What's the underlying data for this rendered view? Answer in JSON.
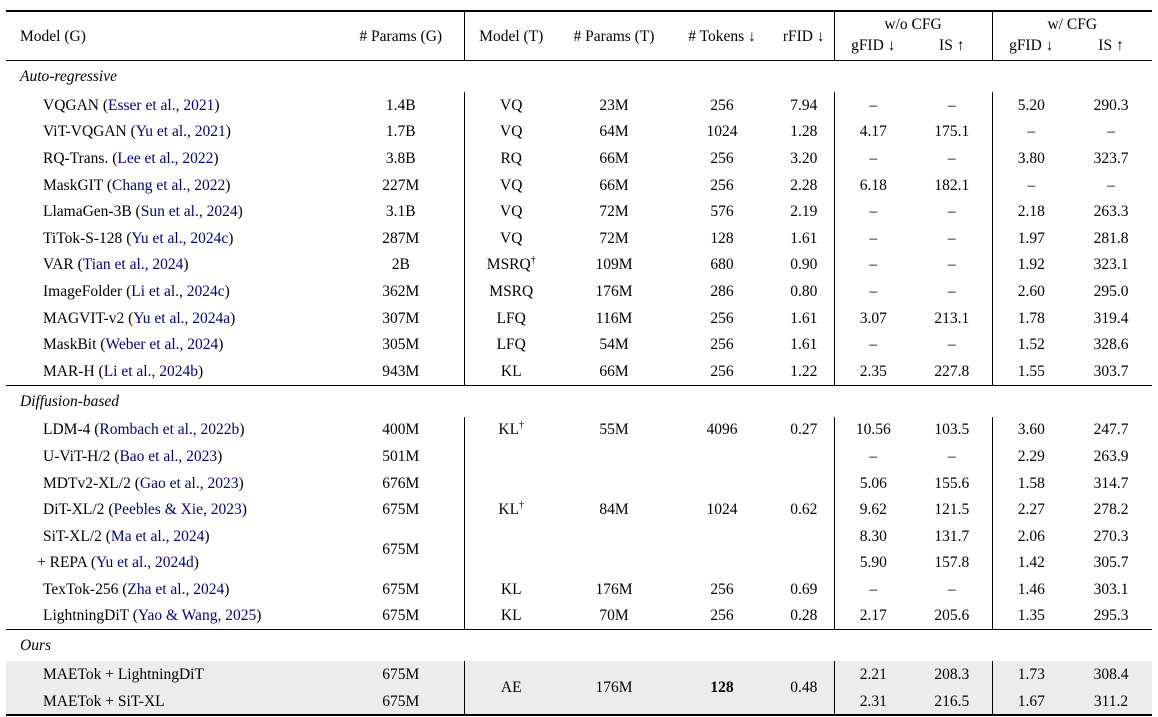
{
  "table": {
    "colors": {
      "cite": "#00008B",
      "highlight": "#ececec"
    },
    "header": {
      "cols": [
        "Model (G)",
        "# Params (G)",
        "Model (T)",
        "# Params (T)",
        "# Tokens ↓",
        "rFID ↓"
      ],
      "groups": [
        {
          "label": "w/o CFG"
        },
        {
          "label": "w/ CFG"
        }
      ],
      "sub": [
        "gFID ↓",
        "IS ↑",
        "gFID ↓",
        "IS ↑"
      ]
    },
    "sections": [
      {
        "title": "Auto-regressive",
        "highlight": false,
        "rows": [
          {
            "model": "VQGAN",
            "cite": "Esser et al., 2021",
            "cells": [
              "1.4B",
              "VQ",
              "23M",
              "256",
              "7.94",
              "–",
              "–",
              "5.20",
              "290.3"
            ]
          },
          {
            "model": "ViT-VQGAN",
            "cite": "Yu et al., 2021",
            "cells": [
              "1.7B",
              "VQ",
              "64M",
              "1024",
              "1.28",
              "4.17",
              "175.1",
              "–",
              "–"
            ]
          },
          {
            "model": "RQ-Trans.",
            "cite": "Lee et al., 2022",
            "cells": [
              "3.8B",
              "RQ",
              "66M",
              "256",
              "3.20",
              "–",
              "–",
              "3.80",
              "323.7"
            ]
          },
          {
            "model": "MaskGIT",
            "cite": "Chang et al., 2022",
            "cells": [
              "227M",
              "VQ",
              "66M",
              "256",
              "2.28",
              "6.18",
              "182.1",
              "–",
              "–"
            ]
          },
          {
            "model": "LlamaGen-3B",
            "cite": "Sun et al., 2024",
            "cells": [
              "3.1B",
              "VQ",
              "72M",
              "576",
              "2.19",
              "–",
              "–",
              "2.18",
              "263.3"
            ]
          },
          {
            "model": "TiTok-S-128",
            "cite": "Yu et al., 2024c",
            "cells": [
              "287M",
              "VQ",
              "72M",
              "128",
              "1.61",
              "–",
              "–",
              "1.97",
              "281.8"
            ]
          },
          {
            "model": "VAR",
            "cite": "Tian et al., 2024",
            "cells": [
              "2B",
              {
                "t": "MSRQ",
                "sup": "†"
              },
              "109M",
              "680",
              "0.90",
              "–",
              "–",
              "1.92",
              "323.1"
            ]
          },
          {
            "model": "ImageFolder",
            "cite": "Li et al., 2024c",
            "cells": [
              "362M",
              "MSRQ",
              "176M",
              "286",
              "0.80",
              "–",
              "–",
              "2.60",
              "295.0"
            ]
          },
          {
            "model": "MAGVIT-v2",
            "cite": "Yu et al., 2024a",
            "cells": [
              "307M",
              "LFQ",
              "116M",
              "256",
              "1.61",
              "3.07",
              "213.1",
              "1.78",
              "319.4"
            ]
          },
          {
            "model": "MaskBit",
            "cite": "Weber et al., 2024",
            "cells": [
              "305M",
              "LFQ",
              "54M",
              "256",
              "1.61",
              "–",
              "–",
              "1.52",
              "328.6"
            ]
          },
          {
            "model": "MAR-H",
            "cite": "Li et al., 2024b",
            "cells": [
              "943M",
              "KL",
              "66M",
              "256",
              "1.22",
              "2.35",
              "227.8",
              "1.55",
              "303.7"
            ]
          }
        ]
      },
      {
        "title": "Diffusion-based",
        "highlight": false,
        "rows": [
          {
            "model": "LDM-4",
            "cite": "Rombach et al., 2022b",
            "cells": [
              "400M",
              {
                "t": "KL",
                "sup": "†"
              },
              "55M",
              "4096",
              "0.27",
              "10.56",
              "103.5",
              "3.60",
              "247.7"
            ]
          },
          {
            "model": "U-ViT-H/2",
            "cite": "Bao et al., 2023",
            "cells": [
              "501M",
              "",
              "",
              "",
              "",
              "–",
              "–",
              "2.29",
              "263.9"
            ]
          },
          {
            "model": "MDTv2-XL/2",
            "cite": "Gao et al., 2023",
            "cells": [
              "676M",
              "",
              "",
              "",
              "",
              "5.06",
              "155.6",
              "1.58",
              "314.7"
            ]
          },
          {
            "model": "DiT-XL/2",
            "cite": "Peebles & Xie, 2023",
            "cells": [
              "675M",
              {
                "t": "KL",
                "sup": "†"
              },
              "84M",
              "1024",
              "0.62",
              "9.62",
              "121.5",
              "2.27",
              "278.2"
            ]
          },
          {
            "model": "SiT-XL/2",
            "cite": "Ma et al., 2024",
            "cells": [
              {
                "t": "675M",
                "rowspan": 2
              },
              "",
              "",
              "",
              "",
              "8.30",
              "131.7",
              "2.06",
              "270.3"
            ]
          },
          {
            "model": "+ REPA",
            "cite": "Yu et al., 2024d",
            "indent": true,
            "cells": [
              null,
              "",
              "",
              "",
              "",
              "5.90",
              "157.8",
              "1.42",
              "305.7"
            ]
          },
          {
            "model": "TexTok-256",
            "cite": "Zha et al., 2024",
            "cells": [
              "675M",
              "KL",
              "176M",
              "256",
              "0.69",
              "–",
              "–",
              "1.46",
              "303.1"
            ]
          },
          {
            "model": "LightningDiT",
            "cite": "Yao & Wang, 2025",
            "cells": [
              "675M",
              "KL",
              "70M",
              "256",
              "0.28",
              "2.17",
              "205.6",
              "1.35",
              "295.3"
            ]
          }
        ]
      },
      {
        "title": "Ours",
        "highlight": true,
        "rows": [
          {
            "model": "MAETok + LightningDiT",
            "cite": null,
            "cells": [
              "675M",
              {
                "t": "AE",
                "rowspan": 2
              },
              {
                "t": "176M",
                "rowspan": 2
              },
              {
                "t": "128",
                "rowspan": 2,
                "bold": true
              },
              {
                "t": "0.48",
                "rowspan": 2
              },
              "2.21",
              "208.3",
              "1.73",
              "308.4"
            ]
          },
          {
            "model": "MAETok + SiT-XL",
            "cite": null,
            "cells": [
              "675M",
              null,
              null,
              null,
              null,
              "2.31",
              "216.5",
              "1.67",
              "311.2"
            ]
          }
        ]
      }
    ]
  }
}
